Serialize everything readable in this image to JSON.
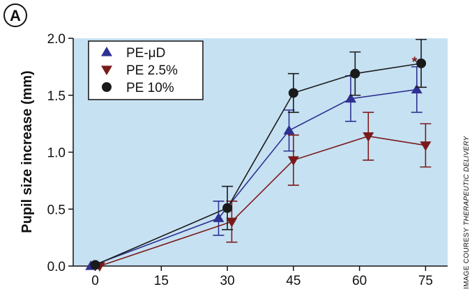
{
  "panel_label": "A",
  "credit": {
    "prefix": "IMAGE COURESY ",
    "italic": "THERAPEUTIC DELIVERY"
  },
  "colors": {
    "plot_background": "#c6e1f2",
    "blue": "#2e3192",
    "red": "#7a1a1a",
    "black": "#1a1a1a"
  },
  "chart_data": {
    "type": "line",
    "title": "",
    "xlabel": "",
    "ylabel": "Pupil size increase (mm)",
    "xlim": [
      -5,
      80
    ],
    "ylim": [
      0.0,
      2.0
    ],
    "x_ticks": [
      0,
      15,
      30,
      45,
      60,
      75
    ],
    "x_tick_labels": [
      "0",
      "15",
      "30",
      "45",
      "60",
      "75"
    ],
    "y_ticks": [
      0.0,
      0.5,
      1.0,
      1.5,
      2.0
    ],
    "y_tick_labels": [
      "0.0",
      "0.5",
      "1.0",
      "1.5",
      "2.0"
    ],
    "grid": false,
    "legend_position": "top-left",
    "series": [
      {
        "name": "PE-μD",
        "marker": "triangle-up",
        "color": "#2e3192",
        "x": [
          -1,
          28,
          44,
          58,
          73
        ],
        "y": [
          0.0,
          0.42,
          1.19,
          1.47,
          1.55
        ],
        "err": [
          0.0,
          0.15,
          0.18,
          0.2,
          0.2
        ]
      },
      {
        "name": "PE 2.5%",
        "marker": "triangle-down",
        "color": "#7a1a1a",
        "x": [
          1,
          31,
          45,
          62,
          75
        ],
        "y": [
          0.0,
          0.39,
          0.93,
          1.14,
          1.06
        ],
        "err": [
          0.0,
          0.18,
          0.22,
          0.21,
          0.19
        ]
      },
      {
        "name": "PE 10%",
        "marker": "circle",
        "color": "#1a1a1a",
        "x": [
          0,
          30,
          45,
          59,
          74
        ],
        "y": [
          0.01,
          0.51,
          1.52,
          1.69,
          1.78
        ],
        "err": [
          0.0,
          0.19,
          0.17,
          0.19,
          0.21
        ]
      }
    ],
    "annotations": [
      {
        "text": "*",
        "x": 72.5,
        "y": 1.8,
        "color": "#7a1a1a"
      }
    ]
  }
}
